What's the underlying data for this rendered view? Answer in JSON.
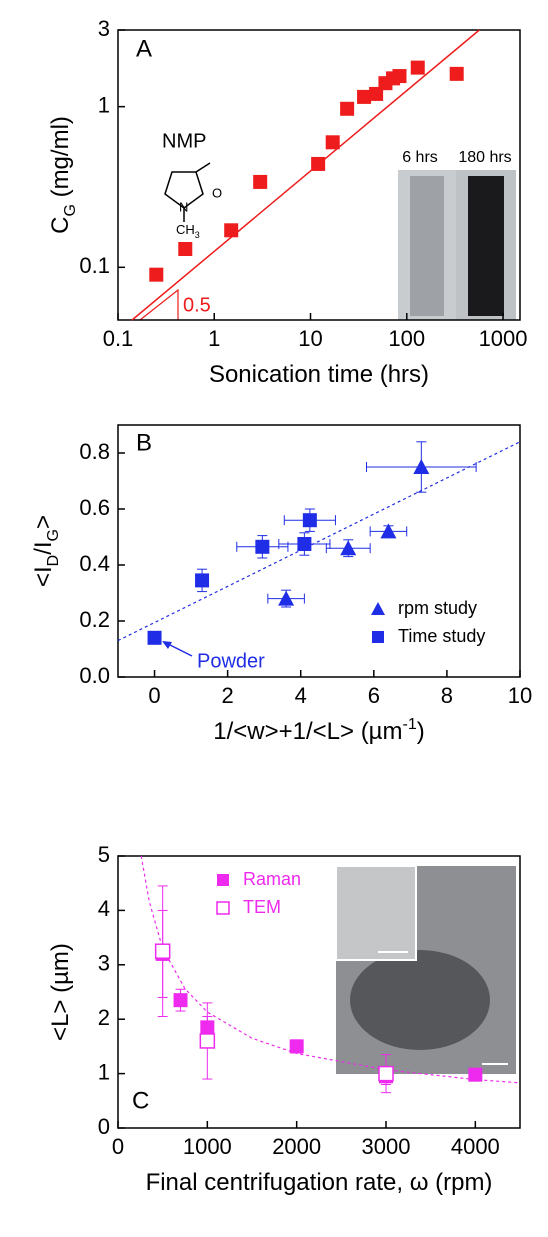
{
  "chart_data": [
    {
      "type": "scatter",
      "panel_label": "A",
      "xlog": true,
      "ylog": true,
      "x_label_parts": [
        "Sonication time (hrs)"
      ],
      "y_label_parts": [
        "C",
        "G",
        " (mg/ml)"
      ],
      "y_label_script": "sub",
      "xlim": [
        0.1,
        1500
      ],
      "ylim": [
        0.047,
        3
      ],
      "xticks": [
        0.1,
        1,
        10,
        100,
        1000
      ],
      "yticks": [
        0.1,
        1,
        3
      ],
      "series": [
        {
          "color": "#ee1c1c",
          "marker": "square",
          "x": [
            0.25,
            0.5,
            1.5,
            3,
            12,
            17,
            24,
            36,
            48,
            60,
            72,
            84,
            130,
            330
          ],
          "values": [
            0.09,
            0.13,
            0.17,
            0.34,
            0.44,
            0.6,
            0.97,
            1.15,
            1.2,
            1.4,
            1.5,
            1.55,
            1.75,
            1.6
          ]
        }
      ],
      "fit": {
        "color": "#ee1c1c",
        "dash": false,
        "x": [
          0.14,
          567
        ],
        "y": [
          0.047,
          3
        ]
      },
      "slope_label": "0.5",
      "molecule": {
        "name": "NMP",
        "atoms": [
          "O",
          "N",
          "CH",
          "3"
        ]
      },
      "photo_labels": [
        "6 hrs",
        "180 hrs"
      ]
    },
    {
      "type": "scatter",
      "panel_label": "B",
      "xlog": false,
      "ylog": false,
      "x_label_parts": [
        "1/<w>+1/<L> (µm",
        "-1",
        ")"
      ],
      "x_label_script": "sup",
      "y_label_parts": [
        "<I",
        "D",
        "/I",
        "G",
        ">"
      ],
      "y_label_script": "sub",
      "xlim": [
        -1,
        10
      ],
      "ylim": [
        0,
        0.9
      ],
      "xticks": [
        0,
        2,
        4,
        6,
        8,
        10
      ],
      "yticks": [
        {
          "value": 0,
          "label": "0.0"
        },
        0.2,
        0.4,
        0.6,
        0.8
      ],
      "legend": "lower right",
      "series": [
        {
          "name": "rpm study",
          "color": "#1f2ee6",
          "marker": "triangle",
          "x": [
            3.6,
            5.3,
            6.4,
            7.3
          ],
          "values": [
            0.28,
            0.46,
            0.52,
            0.75
          ],
          "xerr": [
            0.5,
            0.6,
            0.5,
            1.5
          ],
          "yerr": [
            0.03,
            0.03,
            0.02,
            0.09
          ]
        },
        {
          "name": "Time study",
          "color": "#1f2ee6",
          "marker": "square",
          "x": [
            0,
            1.3,
            2.95,
            4.1,
            4.25
          ],
          "values": [
            0.14,
            0.345,
            0.465,
            0.475,
            0.56
          ],
          "xerr": [
            0,
            0.1,
            0.7,
            0.7,
            0.7
          ],
          "yerr": [
            0.02,
            0.04,
            0.04,
            0.04,
            0.04
          ]
        }
      ],
      "fit": {
        "color": "#1f2ee6",
        "dash": true,
        "x": [
          -1,
          10
        ],
        "y": [
          0.13,
          0.84
        ]
      },
      "annotation": "Powder"
    },
    {
      "type": "scatter",
      "panel_label": "C",
      "xlog": false,
      "ylog": false,
      "x_label_parts": [
        "Final centrifugation rate, ω (rpm)"
      ],
      "y_label_parts": [
        "<L> (µm)"
      ],
      "xlim": [
        0,
        4500
      ],
      "ylim": [
        0,
        5
      ],
      "xticks": [
        0,
        1000,
        2000,
        3000,
        4000
      ],
      "yticks": [
        0,
        1,
        2,
        3,
        4,
        5
      ],
      "legend": "upper left",
      "series": [
        {
          "name": "Raman",
          "color": "#ee2aee",
          "marker": "square",
          "x": [
            500,
            700,
            1000,
            2000,
            3000,
            4000
          ],
          "values": [
            3.2,
            2.35,
            1.85,
            1.5,
            0.95,
            0.98
          ],
          "yerr": [
            0.8,
            0.2,
            0.2,
            0.12,
            0.15,
            0.05
          ]
        },
        {
          "name": "TEM",
          "color": "#ee2aee",
          "marker": "open-square",
          "x": [
            500,
            1000,
            3000
          ],
          "values": [
            3.25,
            1.6,
            1.0
          ],
          "yerr": [
            1.2,
            0.7,
            0.35
          ]
        }
      ],
      "fit": {
        "color": "#ee2aee",
        "dash": true,
        "x": [
          260,
          350,
          500,
          750,
          1000,
          1500,
          2000,
          3000,
          4000,
          4500
        ],
        "y": [
          5.0,
          4.16,
          3.3,
          2.56,
          2.13,
          1.65,
          1.37,
          1.07,
          0.89,
          0.83
        ]
      }
    }
  ]
}
